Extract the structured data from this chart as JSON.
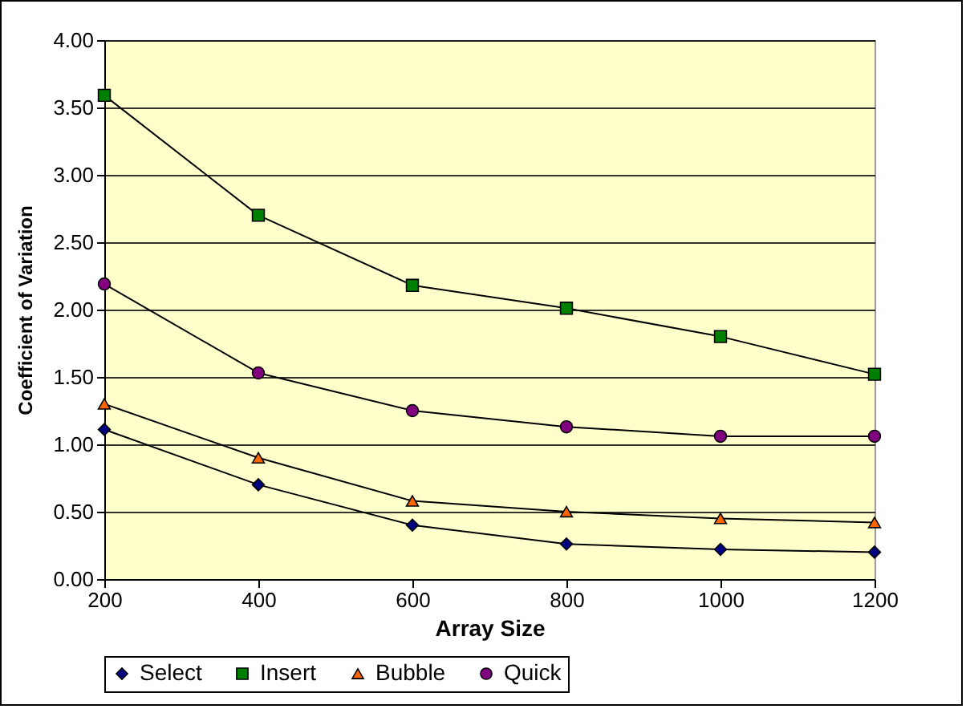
{
  "chart_data": {
    "type": "line",
    "xlabel": "Array Size",
    "ylabel": "Coefficient of Variation",
    "x": [
      200,
      400,
      600,
      800,
      1000,
      1200
    ],
    "xlim": [
      200,
      1200
    ],
    "xticks": [
      200,
      400,
      600,
      800,
      1000,
      1200
    ],
    "ylim": [
      0,
      4
    ],
    "yticks": [
      {
        "value": 0,
        "label": "0.00"
      },
      {
        "value": 0.5,
        "label": "0.50"
      },
      {
        "value": 1,
        "label": "1.00"
      },
      {
        "value": 1.5,
        "label": "1.50"
      },
      {
        "value": 2,
        "label": "2.00"
      },
      {
        "value": 2.5,
        "label": "2.50"
      },
      {
        "value": 3,
        "label": "3.00"
      },
      {
        "value": 3.5,
        "label": "3.50"
      },
      {
        "value": 4,
        "label": "4.00"
      }
    ],
    "grid": "y",
    "legend": "bottom",
    "line_style": "solid",
    "series": [
      {
        "name": "Select",
        "color": "#000080",
        "marker": "diamond",
        "values": [
          1.11,
          0.7,
          0.4,
          0.26,
          0.22,
          0.2
        ]
      },
      {
        "name": "Insert",
        "color": "#008000",
        "marker": "square",
        "values": [
          3.59,
          2.7,
          2.18,
          2.01,
          1.8,
          1.52
        ]
      },
      {
        "name": "Bubble",
        "color": "#ff6600",
        "marker": "triangle",
        "values": [
          1.3,
          0.9,
          0.58,
          0.5,
          0.45,
          0.42
        ]
      },
      {
        "name": "Quick",
        "color": "#800080",
        "marker": "circle",
        "values": [
          2.19,
          1.53,
          1.25,
          1.13,
          1.06,
          1.06
        ]
      }
    ]
  }
}
